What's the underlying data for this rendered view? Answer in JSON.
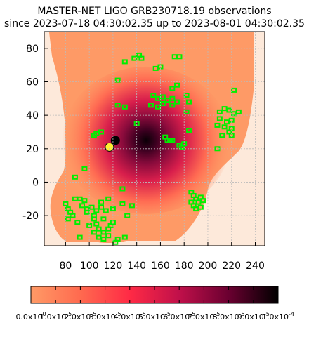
{
  "chart_data": {
    "type": "heatmap",
    "title": "MASTER-NET LIGO GRB230718.19 observations",
    "subtitle": "since 2023-07-18 04:30:02.35 up to 2023-08-01 04:30:02.35",
    "xlabel": "",
    "ylabel": "",
    "xlim": [
      62,
      248
    ],
    "ylim": [
      -38,
      90
    ],
    "x_ticks": [
      80,
      100,
      120,
      140,
      160,
      180,
      200,
      220,
      240
    ],
    "y_ticks": [
      -20,
      0,
      20,
      40,
      60,
      80
    ],
    "x_tick_labels": [
      "80",
      "100",
      "120",
      "140",
      "160",
      "180",
      "200",
      "220",
      "240"
    ],
    "y_tick_labels": [
      "-20",
      "0",
      "20",
      "40",
      "60",
      "80"
    ],
    "grid": true,
    "colorbar": {
      "orientation": "horizontal",
      "min": 0.0,
      "max": 0.0001,
      "colors": [
        "#ff9a66",
        "#ff6a4f",
        "#ff2a45",
        "#c0104a",
        "#6a0030",
        "#000000"
      ],
      "tick_labels": [
        "0.0x10^0",
        "1.0x10^-5",
        "2.0x10^-5",
        "3.0x10^-5",
        "4.0x10^-5",
        "5.0x10^-5",
        "6.0x10^-5",
        "7.0x10^-5",
        "8.0x10^-5",
        "9.0x10^-5",
        "1.0x10^-4"
      ]
    },
    "probability_peak": {
      "x": 148,
      "y": 25
    },
    "markers": [
      {
        "x": 122,
        "y": 25,
        "color": "#000000"
      },
      {
        "x": 117,
        "y": 21,
        "color": "#ffee33"
      }
    ],
    "field_color": "#00ee00",
    "fields": [
      [
        138,
        74
      ],
      [
        142,
        76
      ],
      [
        144,
        74
      ],
      [
        172,
        75
      ],
      [
        176,
        75
      ],
      [
        156,
        68
      ],
      [
        160,
        69
      ],
      [
        130,
        72
      ],
      [
        124,
        61
      ],
      [
        170,
        56
      ],
      [
        174,
        58
      ],
      [
        222,
        55
      ],
      [
        154,
        52
      ],
      [
        158,
        50
      ],
      [
        162,
        51
      ],
      [
        166,
        49
      ],
      [
        170,
        50
      ],
      [
        182,
        52
      ],
      [
        184,
        48
      ],
      [
        170,
        46
      ],
      [
        152,
        46
      ],
      [
        158,
        45
      ],
      [
        162,
        47
      ],
      [
        174,
        48
      ],
      [
        182,
        42
      ],
      [
        130,
        45
      ],
      [
        124,
        46
      ],
      [
        210,
        42
      ],
      [
        214,
        44
      ],
      [
        218,
        43
      ],
      [
        222,
        41
      ],
      [
        226,
        42
      ],
      [
        210,
        38
      ],
      [
        216,
        36
      ],
      [
        220,
        37
      ],
      [
        208,
        34
      ],
      [
        214,
        33
      ],
      [
        220,
        32
      ],
      [
        218,
        30
      ],
      [
        212,
        28
      ],
      [
        220,
        28
      ],
      [
        184,
        31
      ],
      [
        164,
        27
      ],
      [
        166,
        25
      ],
      [
        170,
        25
      ],
      [
        176,
        22
      ],
      [
        178,
        21
      ],
      [
        180,
        23
      ],
      [
        168,
        25
      ],
      [
        104,
        28
      ],
      [
        106,
        29
      ],
      [
        110,
        30
      ],
      [
        208,
        20
      ],
      [
        140,
        35
      ],
      [
        96,
        8
      ],
      [
        88,
        3
      ],
      [
        128,
        -4
      ],
      [
        186,
        -6
      ],
      [
        188,
        -8
      ],
      [
        190,
        -10
      ],
      [
        192,
        -12
      ],
      [
        194,
        -9
      ],
      [
        196,
        -11
      ],
      [
        186,
        -12
      ],
      [
        188,
        -14
      ],
      [
        190,
        -16
      ],
      [
        194,
        -15
      ],
      [
        80,
        -13
      ],
      [
        82,
        -16
      ],
      [
        84,
        -18
      ],
      [
        86,
        -20
      ],
      [
        82,
        -22
      ],
      [
        88,
        -10
      ],
      [
        92,
        -10
      ],
      [
        96,
        -11
      ],
      [
        94,
        -14
      ],
      [
        98,
        -16
      ],
      [
        98,
        -18
      ],
      [
        102,
        -15
      ],
      [
        104,
        -20
      ],
      [
        106,
        -17
      ],
      [
        104,
        -22
      ],
      [
        106,
        -25
      ],
      [
        108,
        -28
      ],
      [
        112,
        -30
      ],
      [
        116,
        -28
      ],
      [
        118,
        -26
      ],
      [
        120,
        -24
      ],
      [
        112,
        -22
      ],
      [
        114,
        -17
      ],
      [
        110,
        -15
      ],
      [
        100,
        -26
      ],
      [
        104,
        -30
      ],
      [
        108,
        -33
      ],
      [
        112,
        -34
      ],
      [
        116,
        -32
      ],
      [
        122,
        -36
      ],
      [
        124,
        -34
      ],
      [
        130,
        -33
      ],
      [
        132,
        -20
      ],
      [
        120,
        -16
      ],
      [
        128,
        -13
      ],
      [
        136,
        -14
      ],
      [
        90,
        -24
      ],
      [
        92,
        -33
      ],
      [
        110,
        -12
      ],
      [
        116,
        -10
      ]
    ]
  }
}
